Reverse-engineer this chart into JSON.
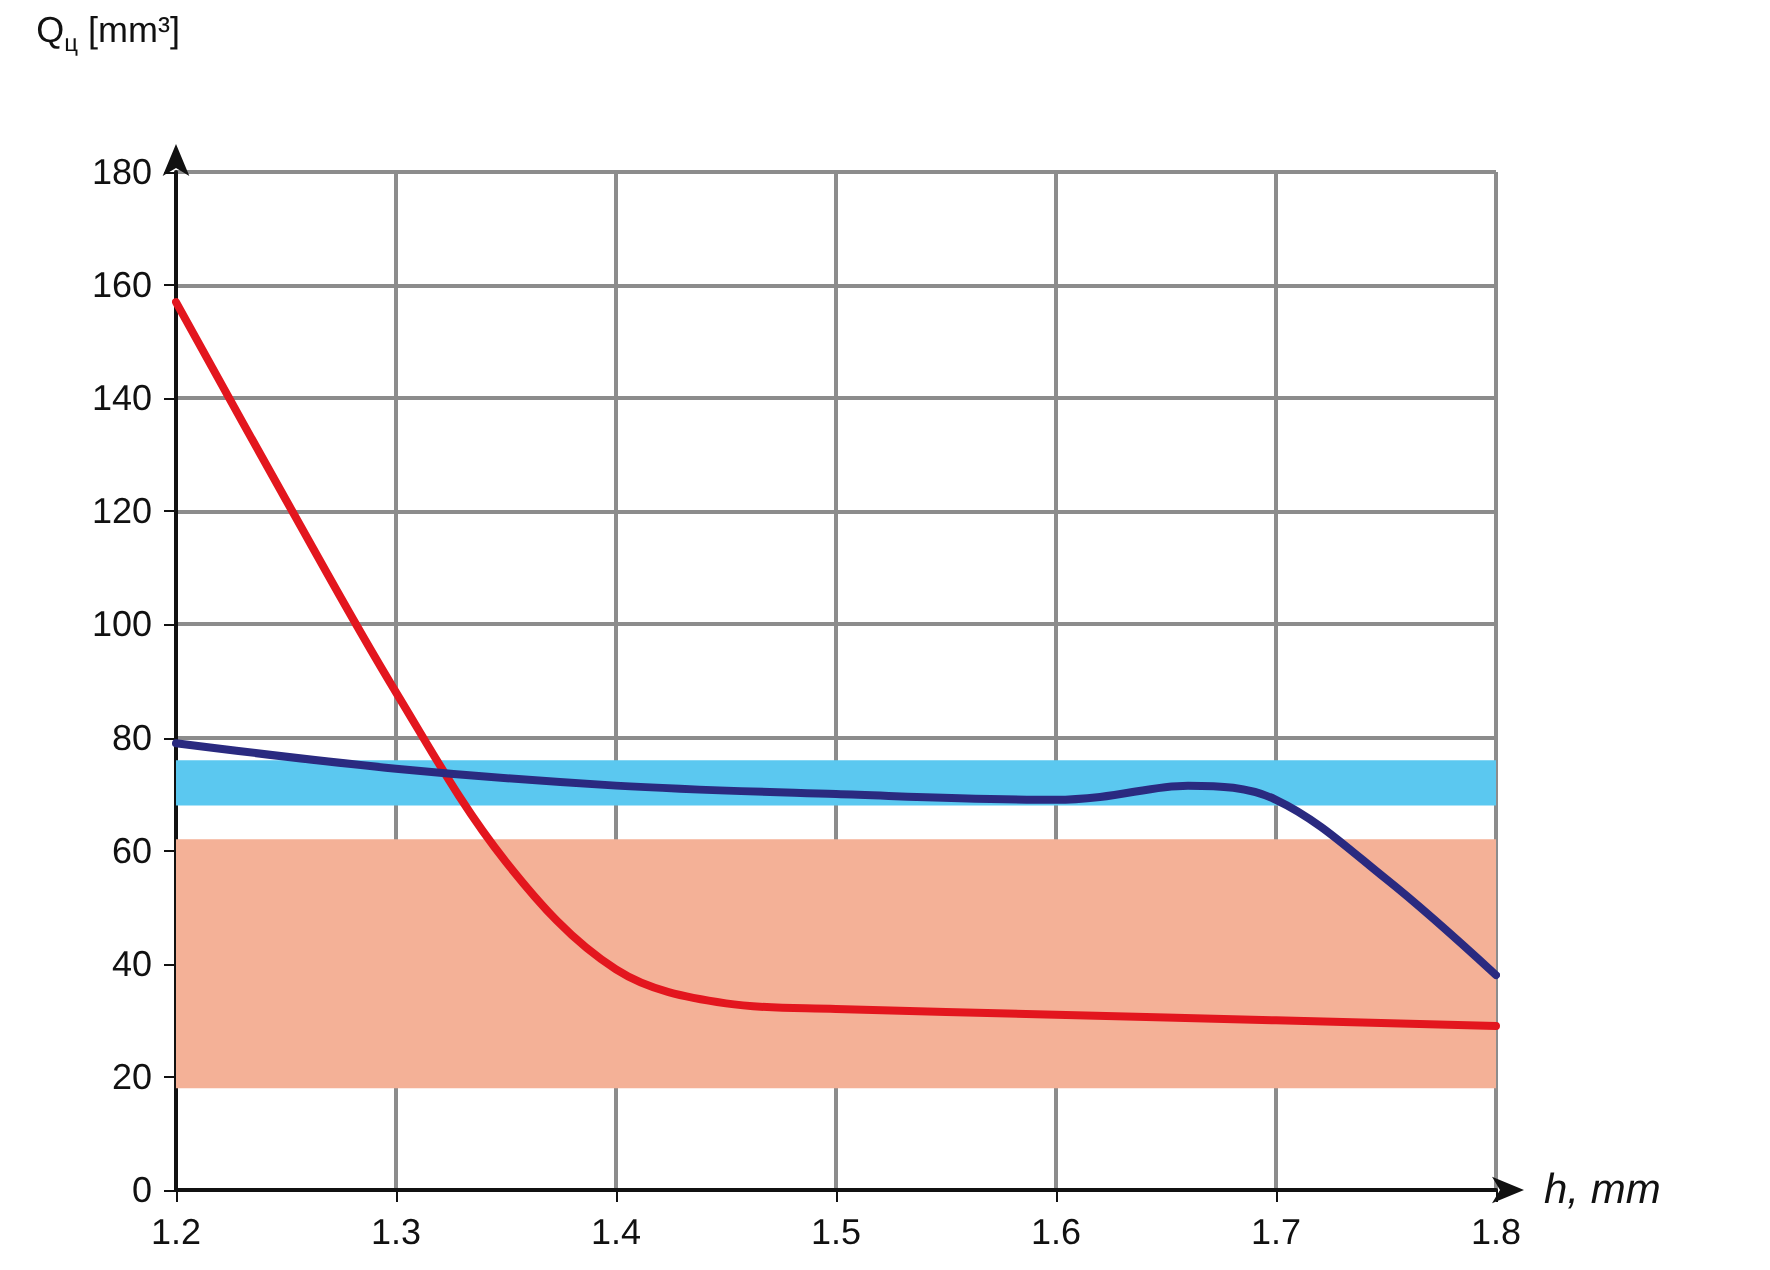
{
  "chart_data": {
    "type": "line",
    "xlabel": "h, mm",
    "ylabel": "Q$_{ц}$ [mm³]",
    "xlim": [
      1.2,
      1.8
    ],
    "xticks": [
      1.2,
      1.3,
      1.4,
      1.5,
      1.6,
      1.7,
      1.8
    ],
    "ylim": [
      0,
      180
    ],
    "yticks": [
      0,
      20,
      40,
      60,
      80,
      100,
      120,
      140,
      160,
      180
    ],
    "grid": true,
    "marker": "none",
    "line_style": "solid",
    "bands": [
      {
        "axis": "y",
        "from": 18,
        "to": 62,
        "color": "#f4b197"
      },
      {
        "axis": "y",
        "from": 68,
        "to": 76,
        "color": "#5bc8f0"
      }
    ],
    "series": [
      {
        "color": "#e3161e",
        "x": [
          1.2,
          1.25,
          1.3,
          1.35,
          1.4,
          1.45,
          1.5,
          1.6,
          1.7,
          1.8
        ],
        "values": [
          157,
          122,
          88,
          58,
          39,
          33,
          32,
          31,
          30,
          29
        ]
      },
      {
        "color": "#2a2a80",
        "x": [
          1.2,
          1.3,
          1.4,
          1.5,
          1.6,
          1.62,
          1.66,
          1.7,
          1.75,
          1.8
        ],
        "values": [
          79,
          74.5,
          71.5,
          70,
          69,
          69.5,
          71.5,
          69,
          55,
          38
        ]
      }
    ]
  }
}
